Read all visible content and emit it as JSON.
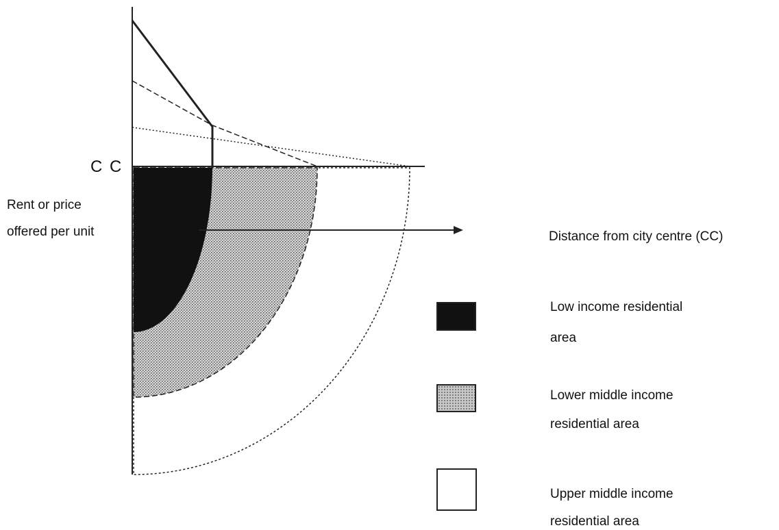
{
  "labels": {
    "cc_marker": "C C",
    "y_axis_line1": "Rent or price",
    "y_axis_line2": "offered per unit",
    "x_axis": "Distance from city centre (CC)"
  },
  "legend": [
    {
      "line1": "Low income residential",
      "line2": "area",
      "fill": "#111111"
    },
    {
      "line1": "Lower middle income",
      "line2": "residential area",
      "fill": "#b8b8b8"
    },
    {
      "line1": "Upper middle income",
      "line2": "residential area",
      "fill": "#ffffff"
    }
  ],
  "colors": {
    "low_income": "#111111",
    "lower_middle_income": "#b8b8b8",
    "upper_middle_income": "#ffffff",
    "lines": "#222222"
  }
}
